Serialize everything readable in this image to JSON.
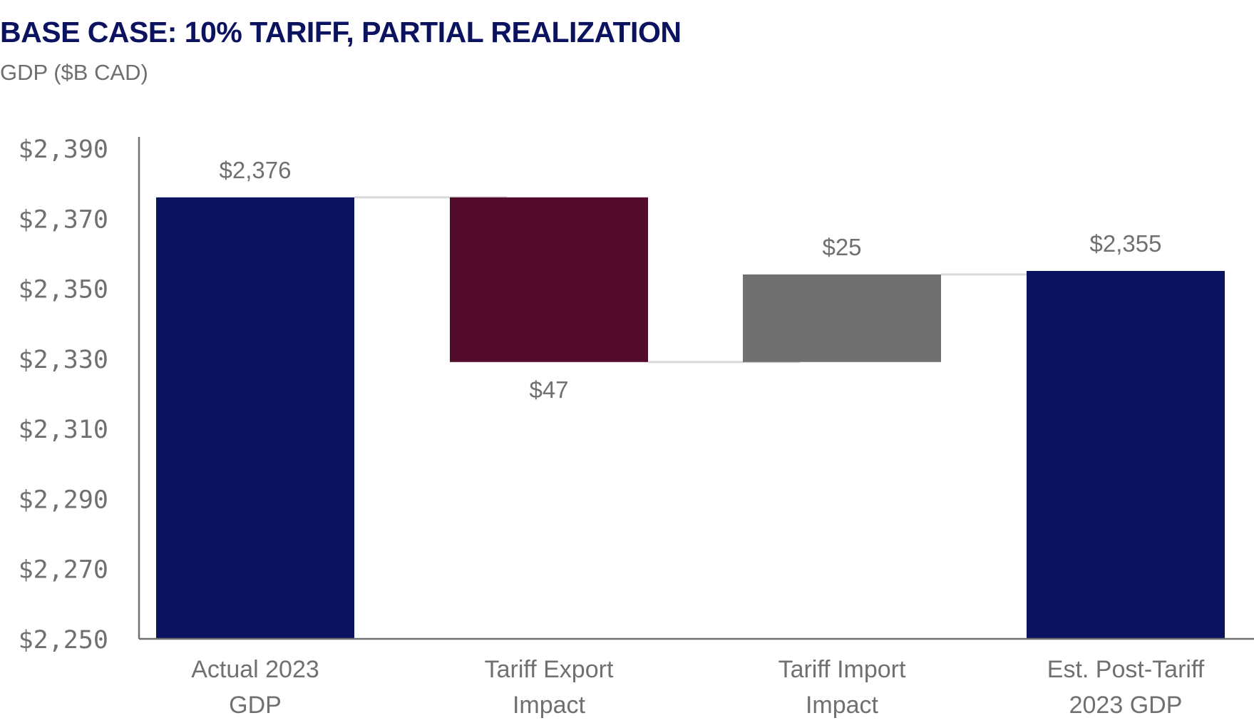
{
  "title": "BASE CASE: 10% TARIFF, PARTIAL REALIZATION",
  "subtitle": "GDP ($B CAD)",
  "colors": {
    "total": "#0b1260",
    "negative": "#520b2a",
    "positive": "#707070",
    "connector": "#d9d9d9",
    "axis": "#707070"
  },
  "chart_data": {
    "type": "waterfall",
    "title": "BASE CASE: 10% TARIFF, PARTIAL REALIZATION",
    "ylabel": "GDP ($B CAD)",
    "ylim": [
      2250,
      2390
    ],
    "yticks": [
      2250,
      2270,
      2290,
      2310,
      2330,
      2350,
      2370,
      2390
    ],
    "ytick_labels": [
      "$2,250",
      "$2,270",
      "$2,290",
      "$2,310",
      "$2,330",
      "$2,350",
      "$2,370",
      "$2,390"
    ],
    "steps": [
      {
        "category_lines": [
          "Actual 2023",
          "GDP"
        ],
        "kind": "total",
        "start": 2250,
        "end": 2376,
        "label": "$2,376",
        "label_pos": "above"
      },
      {
        "category_lines": [
          "Tariff Export",
          "Impact"
        ],
        "kind": "negative",
        "start": 2376,
        "end": 2329,
        "label": "$47",
        "label_pos": "below"
      },
      {
        "category_lines": [
          "Tariff Import",
          "Impact"
        ],
        "kind": "positive",
        "start": 2329,
        "end": 2354,
        "label": "$25",
        "label_pos": "above"
      },
      {
        "category_lines": [
          "Est. Post-Tariff",
          "2023 GDP"
        ],
        "kind": "total",
        "start": 2250,
        "end": 2355,
        "label": "$2,355",
        "label_pos": "above"
      }
    ]
  }
}
